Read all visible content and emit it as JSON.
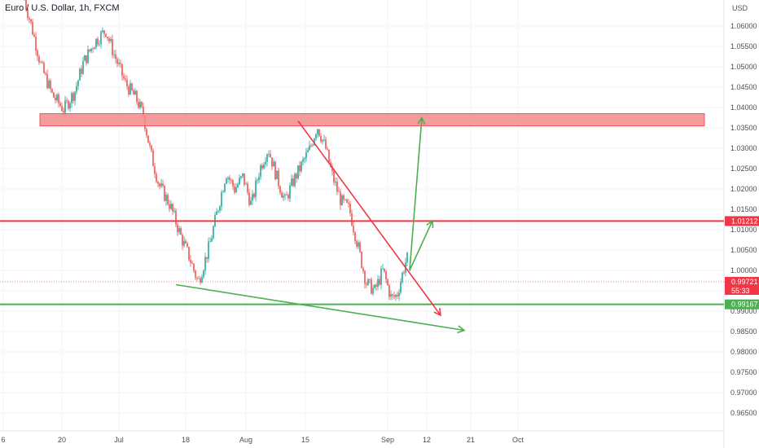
{
  "header": {
    "title": "Euro / U.S. Dollar, 1h, FXCM",
    "currency": "USD"
  },
  "chart_data": {
    "type": "candlestick",
    "symbol": "EURUSD",
    "timeframe": "1h",
    "source": "FXCM",
    "ylim": [
      0.9605,
      1.0685
    ],
    "y_ticks": [
      "1.06000",
      "1.05500",
      "1.05000",
      "1.04500",
      "1.04000",
      "1.03500",
      "1.03000",
      "1.02500",
      "1.02000",
      "1.01500",
      "1.01000",
      "1.00500",
      "1.00000",
      "0.99500",
      "0.99000",
      "0.98500",
      "0.98000",
      "0.97500",
      "0.97000",
      "0.96500"
    ],
    "x_ticks": [
      "6",
      "20",
      "Jul",
      "18",
      "Aug",
      "15",
      "Sep",
      "12",
      "21",
      "Oct"
    ],
    "grid": true,
    "price_path": [
      [
        0,
        1.0665
      ],
      [
        5,
        1.06
      ],
      [
        12,
        1.05
      ],
      [
        20,
        1.043
      ],
      [
        28,
        1.0395
      ],
      [
        36,
        1.044
      ],
      [
        42,
        1.051
      ],
      [
        50,
        1.056
      ],
      [
        58,
        1.059
      ],
      [
        64,
        1.053
      ],
      [
        72,
        1.046
      ],
      [
        80,
        1.042
      ],
      [
        85,
        1.038
      ],
      [
        90,
        1.029
      ],
      [
        96,
        1.021
      ],
      [
        104,
        1.016
      ],
      [
        112,
        1.008
      ],
      [
        118,
        1.003
      ],
      [
        124,
        0.997
      ],
      [
        132,
        1.006
      ],
      [
        138,
        1.015
      ],
      [
        144,
        1.024
      ],
      [
        150,
        1.02
      ],
      [
        156,
        1.023
      ],
      [
        162,
        1.016
      ],
      [
        168,
        1.025
      ],
      [
        174,
        1.03
      ],
      [
        180,
        1.023
      ],
      [
        186,
        1.017
      ],
      [
        192,
        1.022
      ],
      [
        198,
        1.026
      ],
      [
        204,
        1.03
      ],
      [
        209,
        1.0355
      ],
      [
        215,
        1.03
      ],
      [
        220,
        1.023
      ],
      [
        226,
        1.017
      ],
      [
        232,
        1.015
      ],
      [
        238,
        1.006
      ],
      [
        244,
        0.997
      ],
      [
        250,
        0.995
      ],
      [
        256,
        1.0
      ],
      [
        262,
        0.993
      ],
      [
        266,
        0.994
      ],
      [
        272,
        1.002
      ],
      [
        276,
        1.005
      ],
      [
        280,
        0.999
      ],
      [
        284,
        0.992
      ],
      [
        290,
        0.9972
      ]
    ],
    "annotations": {
      "resistance_zone": {
        "low": 1.0355,
        "high": 1.0385,
        "color": "#f28b8b"
      },
      "red_level": {
        "value": 1.01212,
        "label": "1.01212",
        "color": "#f23645"
      },
      "green_level": {
        "value": 0.99167,
        "label": "0.99167",
        "color": "#4caf50"
      },
      "current_price": {
        "value": 0.99721,
        "label": "0.99721",
        "countdown": "55:33",
        "color": "#f23645"
      },
      "red_trendline": {
        "from": [
          1.0367
        ],
        "to": [
          0.989
        ],
        "color": "#f23645"
      },
      "green_trendline": {
        "from": [
          0.9965
        ],
        "to": [
          0.9853
        ],
        "color": "#4caf50"
      },
      "green_arrows": [
        {
          "from": 1.0,
          "to": 1.0375
        },
        {
          "from": 1.0,
          "to": 1.0122
        }
      ]
    }
  }
}
